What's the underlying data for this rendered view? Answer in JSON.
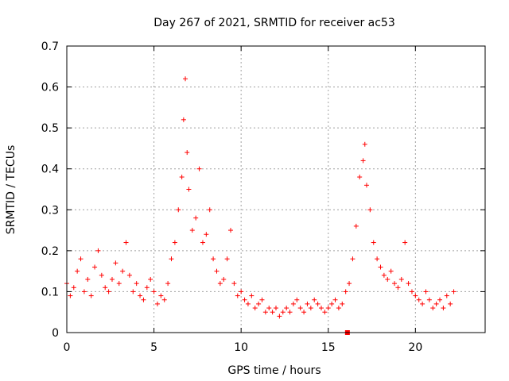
{
  "chart_data": {
    "type": "scatter",
    "title": "Day 267 of 2021, SRMTID for receiver ac53",
    "xlabel": "GPS time / hours",
    "ylabel": "SRMTID / TECUs",
    "xlim": [
      0,
      24
    ],
    "ylim": [
      0,
      0.7
    ],
    "xticks": [
      0,
      5,
      10,
      15,
      20
    ],
    "xtick_labels": [
      "0",
      "5",
      "10",
      "15",
      "20"
    ],
    "yticks": [
      0,
      0.1,
      0.2,
      0.3,
      0.4,
      0.5,
      0.6,
      0.7
    ],
    "ytick_labels": [
      "0",
      "0.1",
      "0.2",
      "0.3",
      "0.4",
      "0.5",
      "0.6",
      "0.7"
    ],
    "grid": true,
    "marker": "+",
    "color": "#ff0000",
    "series": [
      {
        "name": "SRMTID",
        "x": [
          0.0,
          0.2,
          0.4,
          0.6,
          0.8,
          1.0,
          1.2,
          1.4,
          1.6,
          1.8,
          2.0,
          2.2,
          2.4,
          2.6,
          2.8,
          3.0,
          3.2,
          3.4,
          3.6,
          3.8,
          4.0,
          4.2,
          4.4,
          4.6,
          4.8,
          5.0,
          5.2,
          5.4,
          5.6,
          5.8,
          6.0,
          6.2,
          6.4,
          6.6,
          6.7,
          6.8,
          6.9,
          7.0,
          7.2,
          7.4,
          7.6,
          7.8,
          8.0,
          8.2,
          8.4,
          8.6,
          8.8,
          9.0,
          9.2,
          9.4,
          9.6,
          9.8,
          10.0,
          10.2,
          10.4,
          10.6,
          10.8,
          11.0,
          11.2,
          11.4,
          11.6,
          11.8,
          12.0,
          12.2,
          12.4,
          12.6,
          12.8,
          13.0,
          13.2,
          13.4,
          13.6,
          13.8,
          14.0,
          14.2,
          14.4,
          14.6,
          14.8,
          15.0,
          15.2,
          15.4,
          15.6,
          15.8,
          16.0,
          16.2,
          16.4,
          16.6,
          16.8,
          17.0,
          17.1,
          17.2,
          17.4,
          17.6,
          17.8,
          18.0,
          18.2,
          18.4,
          18.6,
          18.8,
          19.0,
          19.2,
          19.4,
          19.6,
          19.8,
          20.0,
          20.2,
          20.4,
          20.6,
          20.8,
          21.0,
          21.2,
          21.4,
          21.6,
          21.8,
          22.0,
          22.2
        ],
        "y": [
          0.12,
          0.09,
          0.11,
          0.15,
          0.18,
          0.1,
          0.13,
          0.09,
          0.16,
          0.2,
          0.14,
          0.11,
          0.1,
          0.13,
          0.17,
          0.12,
          0.15,
          0.22,
          0.14,
          0.1,
          0.12,
          0.09,
          0.08,
          0.11,
          0.13,
          0.1,
          0.07,
          0.09,
          0.08,
          0.12,
          0.18,
          0.22,
          0.3,
          0.38,
          0.52,
          0.62,
          0.44,
          0.35,
          0.25,
          0.28,
          0.4,
          0.22,
          0.24,
          0.3,
          0.18,
          0.15,
          0.12,
          0.13,
          0.18,
          0.25,
          0.12,
          0.09,
          0.1,
          0.08,
          0.07,
          0.09,
          0.06,
          0.07,
          0.08,
          0.05,
          0.06,
          0.05,
          0.06,
          0.04,
          0.05,
          0.06,
          0.05,
          0.07,
          0.08,
          0.06,
          0.05,
          0.07,
          0.06,
          0.08,
          0.07,
          0.06,
          0.05,
          0.06,
          0.07,
          0.08,
          0.06,
          0.07,
          0.1,
          0.12,
          0.18,
          0.26,
          0.38,
          0.42,
          0.46,
          0.36,
          0.3,
          0.22,
          0.18,
          0.16,
          0.14,
          0.13,
          0.15,
          0.12,
          0.11,
          0.13,
          0.22,
          0.12,
          0.1,
          0.09,
          0.08,
          0.07,
          0.1,
          0.08,
          0.06,
          0.07,
          0.08,
          0.06,
          0.09,
          0.07,
          0.1
        ]
      }
    ],
    "outlier_markers": [
      {
        "x": 16.1,
        "y": 0.0,
        "marker": "square"
      }
    ]
  }
}
